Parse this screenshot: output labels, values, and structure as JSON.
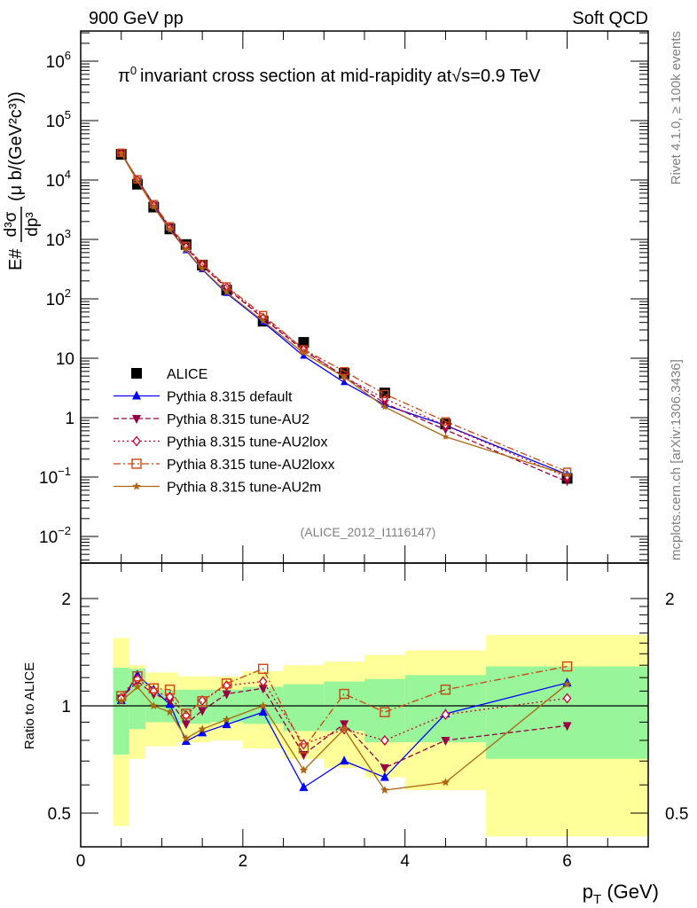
{
  "chart_data": {
    "type": "scatter",
    "top_left_label": "900 GeV pp",
    "top_right_label": "Soft QCD",
    "title": "invariant cross section at mid-rapidity at",
    "title_particle": "π",
    "title_particle_sup": "0",
    "title_sqrt": "√",
    "title_energy": "s=0.9 TeV",
    "side_label_top": "Rivet 4.1.0, ≥ 100k events",
    "side_label_bottom": "mcplots.cern.ch [arXiv:1306.3436]",
    "watermark": "(ALICE_2012_I1116147)",
    "ylabel_main": "E#d³σ/dp³ (μ b/(GeV²c³))",
    "ylabel_main_parts": {
      "lhs": "E#",
      "num": "d³σ",
      "den": "dp³",
      "units": "(μ b/(GeV²c³))"
    },
    "ylabel_ratio": "Ratio to ALICE",
    "xlabel": "p_T (GeV)",
    "xlabel_parts": {
      "p": "p",
      "sub": "T",
      "units": "(GeV)"
    },
    "xlim": [
      0,
      7
    ],
    "ylim_main": [
      0.0036,
      3500000
    ],
    "ylim_ratio": [
      0.4,
      2.5
    ],
    "xscale": "linear",
    "yscale_main": "log",
    "yscale_ratio": "log",
    "x_ticks": [
      "0",
      "2",
      "4",
      "6"
    ],
    "y_ticks_main": [
      {
        "v": 1000000,
        "base": "10",
        "exp": "6"
      },
      {
        "v": 100000,
        "base": "10",
        "exp": "5"
      },
      {
        "v": 10000,
        "base": "10",
        "exp": "4"
      },
      {
        "v": 1000,
        "base": "10",
        "exp": "3"
      },
      {
        "v": 100,
        "base": "10",
        "exp": "2"
      },
      {
        "v": 10,
        "base": "10",
        "exp": ""
      },
      {
        "v": 1,
        "base": "1",
        "exp": ""
      },
      {
        "v": 0.1,
        "base": "10",
        "exp": "−1"
      },
      {
        "v": 0.01,
        "base": "10",
        "exp": "−2"
      }
    ],
    "y_ticks_ratio": [
      "0.5",
      "1",
      "2"
    ],
    "y_ticks_ratio_right": [
      "0.5",
      "2"
    ],
    "legend_position": "lower-left",
    "x": [
      0.5,
      0.7,
      0.9,
      1.1,
      1.3,
      1.5,
      1.8,
      2.25,
      2.75,
      3.25,
      3.75,
      4.5,
      6.0
    ],
    "bins": [
      [
        0.4,
        0.6
      ],
      [
        0.6,
        0.8
      ],
      [
        0.8,
        1.0
      ],
      [
        1.0,
        1.2
      ],
      [
        1.2,
        1.4
      ],
      [
        1.4,
        1.6
      ],
      [
        1.6,
        2.0
      ],
      [
        2.0,
        2.5
      ],
      [
        2.5,
        3.0
      ],
      [
        3.0,
        3.5
      ],
      [
        3.5,
        4.0
      ],
      [
        4.0,
        5.0
      ],
      [
        5.0,
        7.0
      ]
    ],
    "data": {
      "name": "ALICE",
      "values": [
        27000,
        8500,
        3500,
        1500,
        820,
        370,
        140,
        42,
        18.5,
        5.6,
        2.6,
        0.78,
        0.095
      ],
      "band_total": [
        [
          1.55,
          0.46
        ],
        [
          1.3,
          0.71
        ],
        [
          1.24,
          0.77
        ],
        [
          1.24,
          0.77
        ],
        [
          1.21,
          0.79
        ],
        [
          1.21,
          0.79
        ],
        [
          1.21,
          0.8
        ],
        [
          1.25,
          0.76
        ],
        [
          1.3,
          0.71
        ],
        [
          1.33,
          0.67
        ],
        [
          1.39,
          0.63
        ],
        [
          1.43,
          0.58
        ],
        [
          1.58,
          0.43
        ]
      ],
      "band_stat": [
        [
          1.28,
          0.73
        ],
        [
          1.27,
          0.86
        ],
        [
          1.11,
          0.9
        ],
        [
          1.11,
          0.9
        ],
        [
          1.11,
          0.89
        ],
        [
          1.11,
          0.89
        ],
        [
          1.11,
          0.9
        ],
        [
          1.13,
          0.89
        ],
        [
          1.15,
          0.85
        ],
        [
          1.17,
          0.85
        ],
        [
          1.19,
          0.79
        ],
        [
          1.22,
          0.79
        ],
        [
          1.29,
          0.71
        ]
      ],
      "color": "#000000",
      "band_total_color": "#ffff99",
      "band_stat_color": "#99f599"
    },
    "series": [
      {
        "name": "Pythia 8.315 default",
        "color": "#0000ff",
        "line": "solid",
        "marker": "triangle-up",
        "ratio": [
          1.035,
          1.22,
          1.11,
          1.01,
          0.795,
          0.84,
          0.886,
          0.96,
          0.59,
          0.7,
          0.63,
          0.95,
          1.16
        ]
      },
      {
        "name": "Pythia 8.315 tune-AU2",
        "color": "#990044",
        "line": "dashed",
        "marker": "triangle-down",
        "ratio": [
          1.05,
          1.17,
          1.08,
          1.035,
          0.89,
          0.97,
          1.08,
          1.12,
          0.73,
          0.89,
          0.67,
          0.8,
          0.88
        ]
      },
      {
        "name": "Pythia 8.315 tune-AU2lox",
        "color": "#cc0033",
        "line": "dotted",
        "marker": "diamond-open",
        "ratio": [
          1.05,
          1.19,
          1.1,
          1.06,
          0.94,
          1.035,
          1.14,
          1.17,
          0.78,
          0.86,
          0.8,
          0.945,
          1.05
        ]
      },
      {
        "name": "Pythia 8.315 tune-AU2loxx",
        "color": "#cc4411",
        "line": "dashdot",
        "marker": "square-open",
        "ratio": [
          1.065,
          1.21,
          1.12,
          1.11,
          0.95,
          1.03,
          1.155,
          1.27,
          0.76,
          1.08,
          0.96,
          1.11,
          1.29
        ]
      },
      {
        "name": "Pythia 8.315 tune-AU2m",
        "color": "#aa6611",
        "line": "solid",
        "marker": "star",
        "ratio": [
          1.03,
          1.13,
          1.0,
          0.96,
          0.81,
          0.86,
          0.915,
          1.0,
          0.66,
          0.86,
          0.58,
          0.61,
          1.15
        ]
      }
    ]
  }
}
